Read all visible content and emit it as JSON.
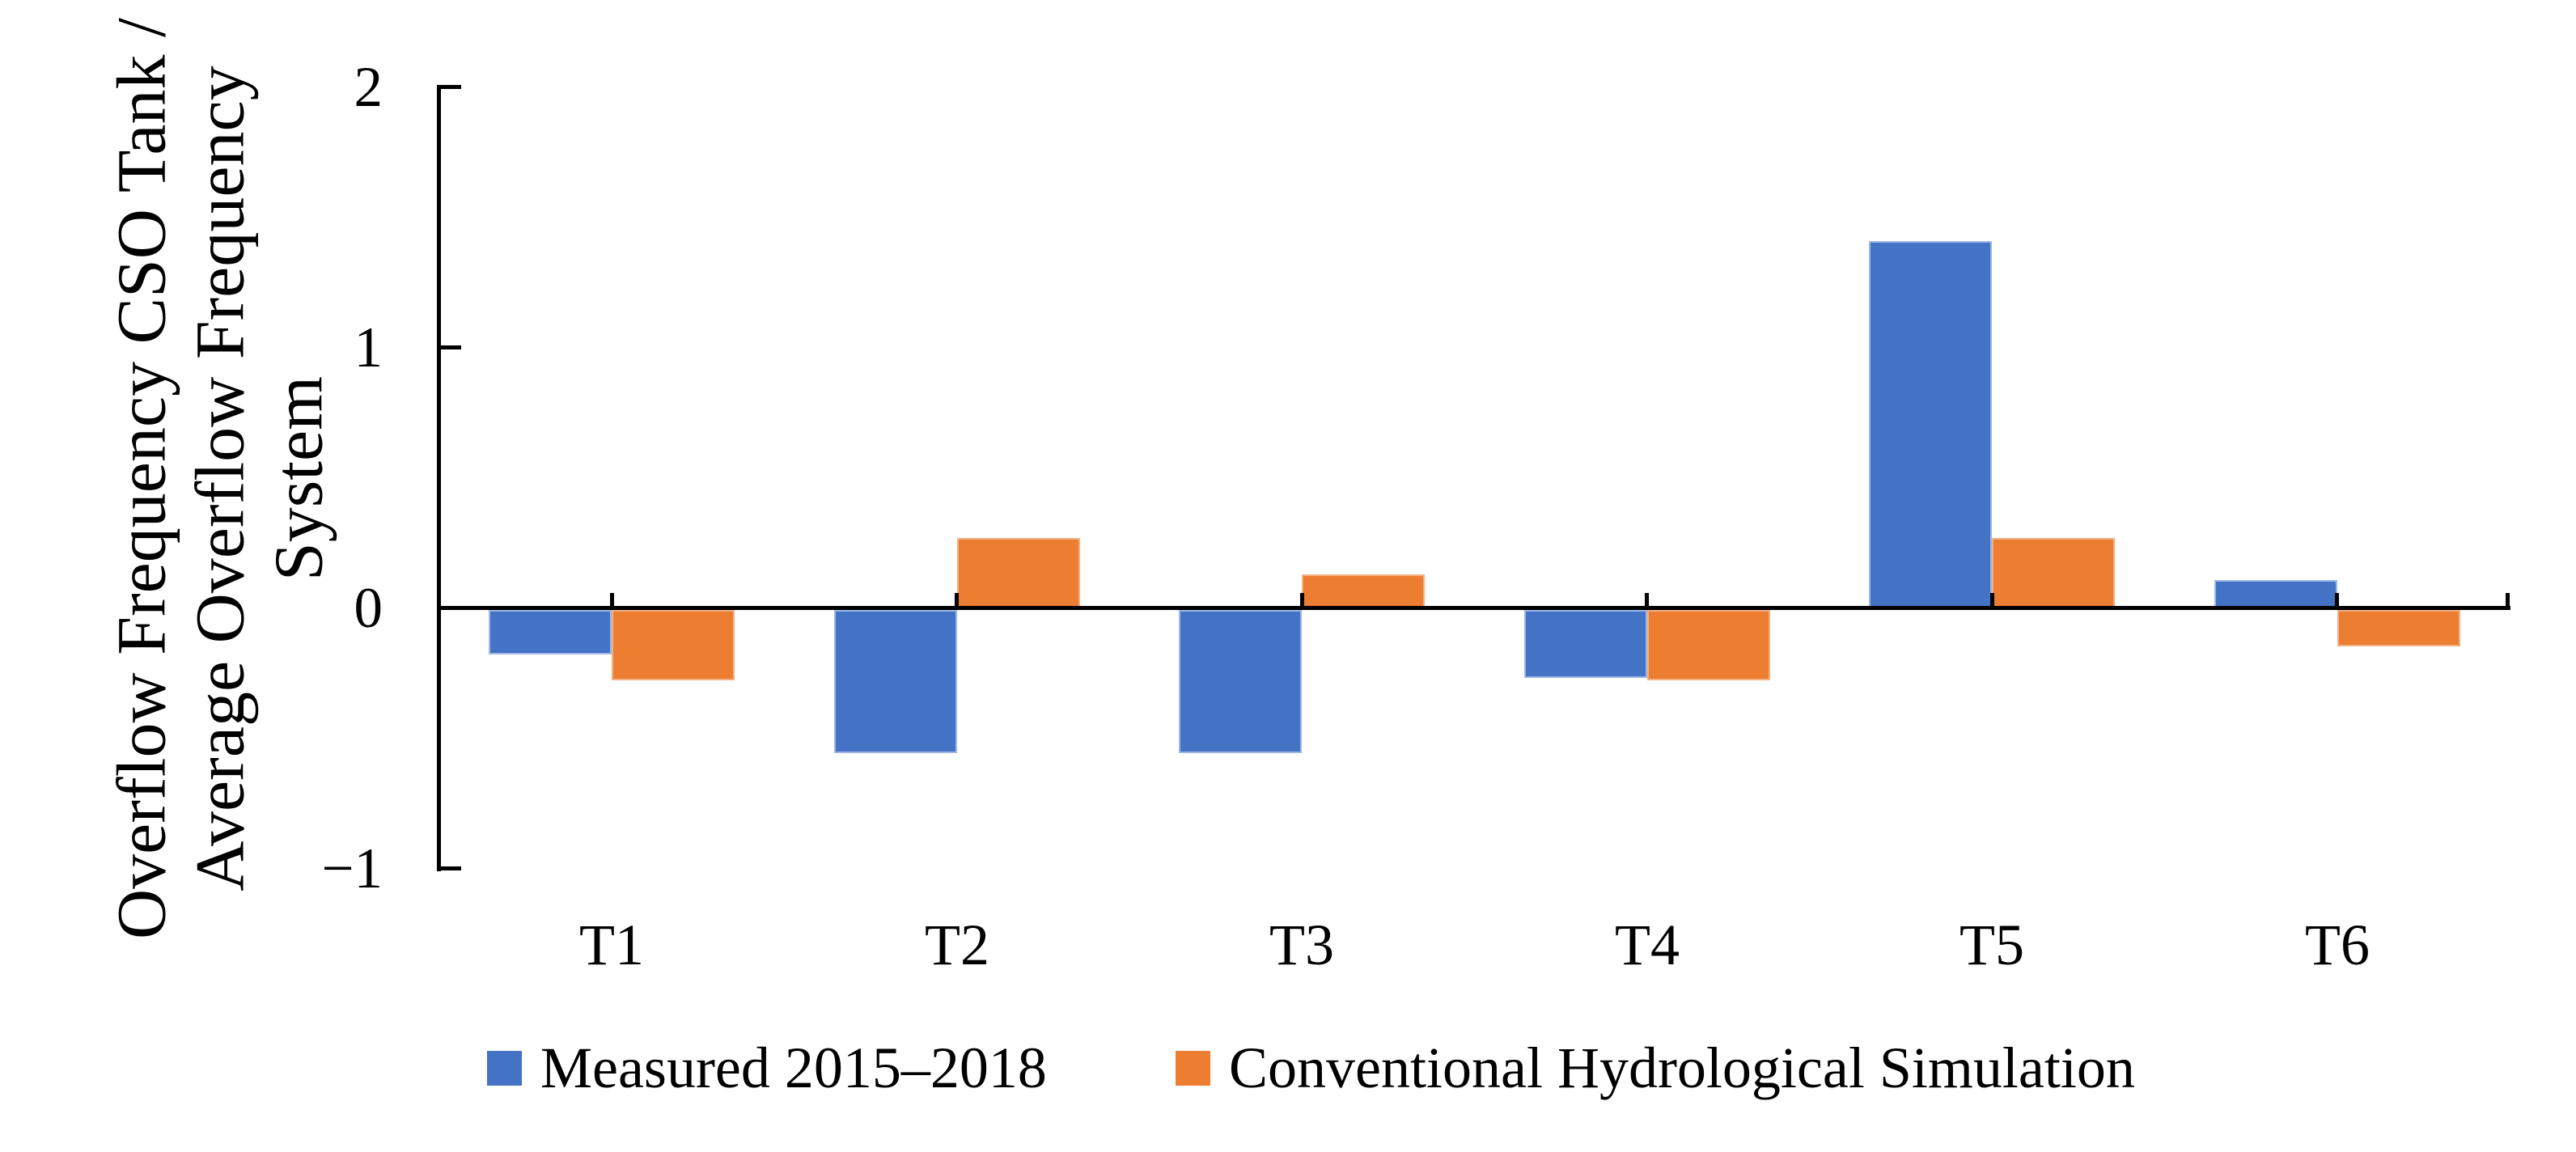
{
  "figure": {
    "background": "#ffffff",
    "axis_color": "#000000"
  },
  "chart_data": {
    "type": "bar",
    "title": "",
    "categories": [
      "T1",
      "T2",
      "T3",
      "T4",
      "T5",
      "T6"
    ],
    "series": [
      {
        "name": "Measured 2015–2018",
        "color": "#4472C4",
        "edge_color": "#9FB8E8",
        "values": [
          -0.17,
          -0.55,
          -0.55,
          -0.26,
          1.41,
          0.11
        ]
      },
      {
        "name": "Conventional Hydrological Simulation",
        "color": "#ED7D31",
        "edge_color": "#F2B183",
        "values": [
          -0.27,
          0.27,
          0.13,
          -0.27,
          0.27,
          -0.14
        ]
      }
    ],
    "xlabel": "",
    "ylabel": "Overflow Frequency CSO Tank / Average Overflow Frequency System",
    "ylabel_lines": [
      "Overflow Frequency CSO Tank /",
      "Average Overflow Frequency",
      "System"
    ],
    "ylim": [
      -1,
      2
    ],
    "yticks": [
      {
        "value": 2,
        "label": "2"
      },
      {
        "value": 1,
        "label": "1"
      },
      {
        "value": 0,
        "label": "0"
      },
      {
        "value": -1,
        "label": "−1"
      }
    ],
    "grid": false,
    "legend_position": "bottom"
  },
  "legend": {
    "entries": [
      {
        "label": "Measured 2015–2018",
        "swatch_color": "#4472C4"
      },
      {
        "label": "Conventional Hydrological Simulation",
        "swatch_color": "#ED7D31"
      }
    ]
  }
}
